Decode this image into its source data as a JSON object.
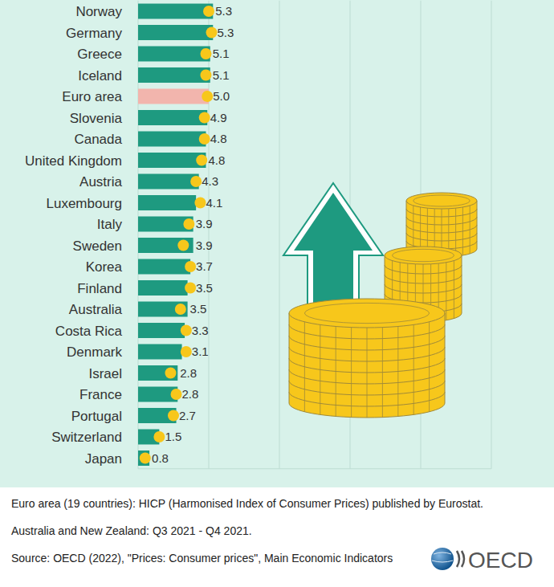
{
  "chart_data": {
    "type": "bar",
    "orientation": "horizontal",
    "categories": [
      "Norway",
      "Germany",
      "Greece",
      "Iceland",
      "Euro area",
      "Slovenia",
      "Canada",
      "United Kingdom",
      "Austria",
      "Luxembourg",
      "Italy",
      "Sweden",
      "Korea",
      "Finland",
      "Australia",
      "Costa Rica",
      "Denmark",
      "Israel",
      "France",
      "Portugal",
      "Switzerland",
      "Japan"
    ],
    "series": [
      {
        "type": "bar",
        "color": "#1e9a80",
        "colors": [
          "#1e9a80",
          "#1e9a80",
          "#1e9a80",
          "#1e9a80",
          "#f2b5ad",
          "#1e9a80",
          "#1e9a80",
          "#1e9a80",
          "#1e9a80",
          "#1e9a80",
          "#1e9a80",
          "#1e9a80",
          "#1e9a80",
          "#1e9a80",
          "#1e9a80",
          "#1e9a80",
          "#1e9a80",
          "#1e9a80",
          "#1e9a80",
          "#1e9a80",
          "#1e9a80",
          "#1e9a80"
        ],
        "values": [
          5.3,
          5.3,
          5.1,
          5.1,
          5.0,
          4.9,
          4.8,
          4.8,
          4.3,
          4.1,
          3.9,
          3.9,
          3.7,
          3.5,
          3.5,
          3.3,
          3.1,
          2.8,
          2.8,
          2.7,
          1.5,
          0.8
        ],
        "value_labels": [
          "5.3",
          "5.3",
          "5.1",
          "5.1",
          "5.0",
          "4.9",
          "4.8",
          "4.8",
          "4.3",
          "4.1",
          "3.9",
          "3.9",
          "3.7",
          "3.5",
          "3.5",
          "3.3",
          "3.1",
          "2.8",
          "2.8",
          "2.7",
          "1.5",
          "0.8"
        ]
      },
      {
        "type": "scatter",
        "marker": "circle",
        "color": "#f7c71b",
        "values": [
          5.0,
          5.2,
          4.8,
          4.8,
          4.9,
          4.7,
          4.7,
          4.5,
          4.1,
          4.4,
          3.6,
          3.2,
          3.7,
          3.7,
          3.0,
          3.4,
          3.4,
          2.3,
          2.7,
          2.5,
          1.5,
          0.5
        ]
      }
    ],
    "xlim": [
      0,
      25
    ],
    "xticks": [
      0,
      5,
      10,
      15,
      20,
      25
    ],
    "grid": true,
    "tick_labels": false,
    "data_labels": true,
    "notes": [
      "Euro area (19 countries): HICP (Harmonised Index of Consumer Prices) published by Eurostat.",
      "Australia and New Zealand: Q3 2021 - Q4 2021.",
      "Source: OECD (2022), \"Prices: Consumer prices\", Main Economic Indicators"
    ],
    "logo": "OECD"
  }
}
